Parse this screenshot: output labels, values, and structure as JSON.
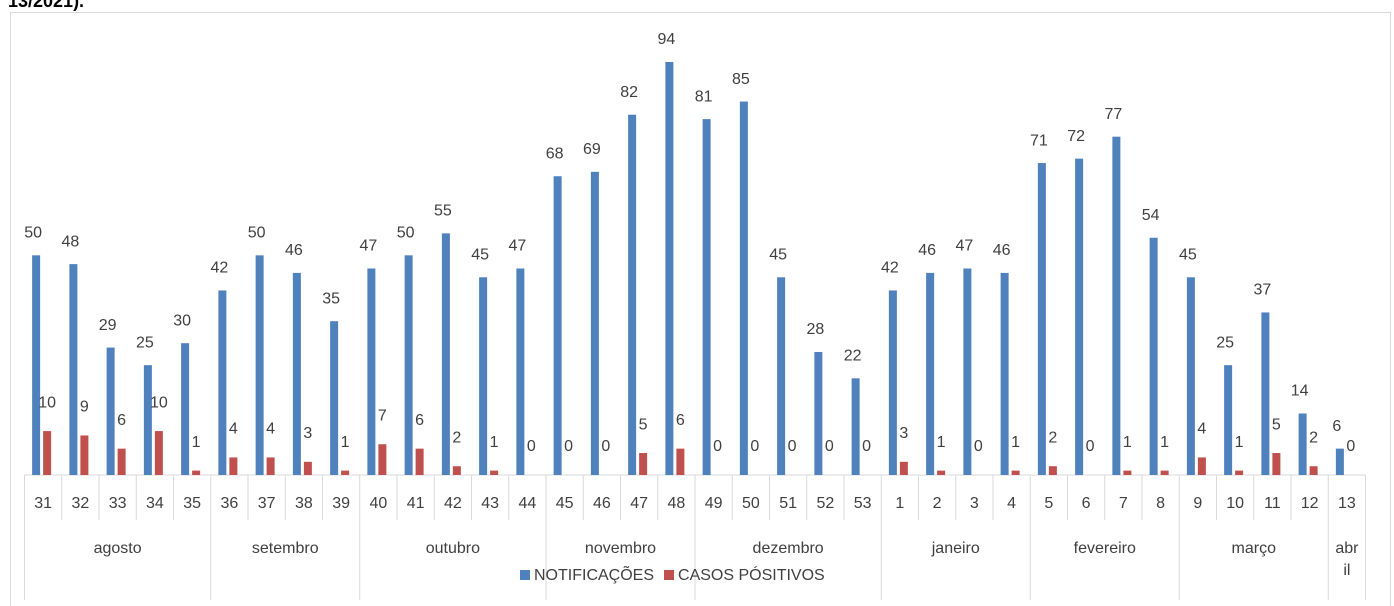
{
  "chart_data": {
    "type": "bar",
    "title": "13/2021).",
    "categories": [
      "31",
      "32",
      "33",
      "34",
      "35",
      "36",
      "37",
      "38",
      "39",
      "40",
      "41",
      "42",
      "43",
      "44",
      "45",
      "46",
      "47",
      "48",
      "49",
      "50",
      "51",
      "52",
      "53",
      "1",
      "2",
      "3",
      "4",
      "5",
      "6",
      "7",
      "8",
      "9",
      "10",
      "11",
      "12",
      "13"
    ],
    "months": [
      "agosto",
      null,
      null,
      null,
      null,
      "setembro",
      null,
      null,
      null,
      "outubro",
      null,
      null,
      null,
      null,
      "novembro",
      null,
      null,
      null,
      "dezembro",
      null,
      null,
      null,
      null,
      "janeiro",
      null,
      null,
      null,
      "fevereiro",
      null,
      null,
      null,
      "março",
      null,
      null,
      null,
      "abril"
    ],
    "series": [
      {
        "name": "NOTIFICAÇÕES",
        "color": "#4f81bd",
        "values": [
          50,
          48,
          29,
          25,
          30,
          42,
          50,
          46,
          35,
          47,
          50,
          55,
          45,
          47,
          68,
          69,
          82,
          94,
          81,
          85,
          45,
          28,
          22,
          42,
          46,
          47,
          46,
          71,
          72,
          77,
          54,
          45,
          25,
          37,
          14,
          6
        ]
      },
      {
        "name": "CASOS PÓSITIVOS",
        "color": "#c0504d",
        "values": [
          10,
          9,
          6,
          10,
          1,
          4,
          4,
          3,
          1,
          7,
          6,
          2,
          1,
          0,
          0,
          0,
          5,
          6,
          0,
          0,
          0,
          0,
          0,
          3,
          1,
          0,
          1,
          2,
          0,
          1,
          1,
          4,
          1,
          5,
          2,
          0
        ]
      }
    ]
  }
}
